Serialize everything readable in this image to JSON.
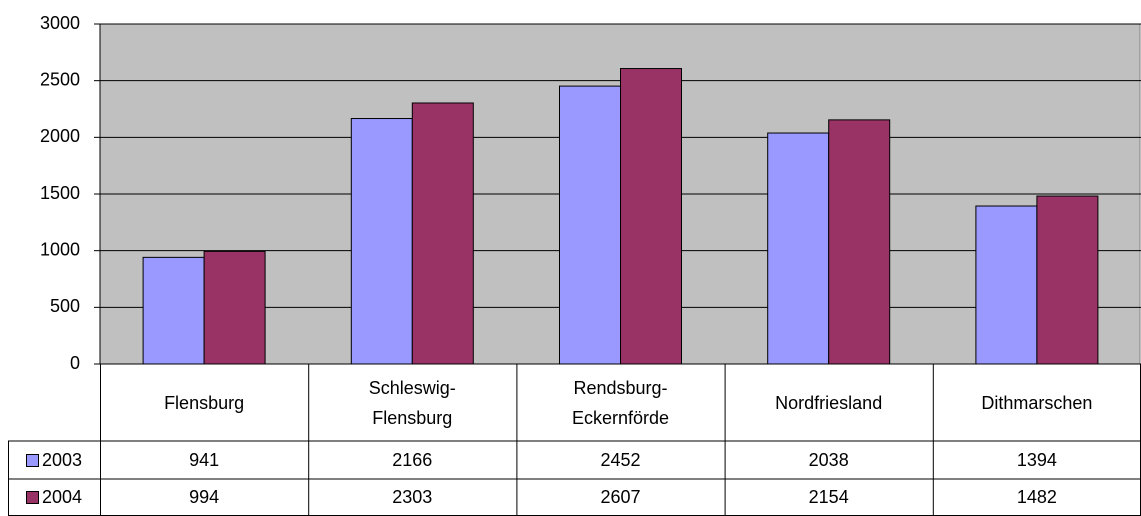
{
  "chart_data": {
    "type": "bar",
    "categories": [
      "Flensburg",
      "Schleswig-Flensburg",
      "Rendsburg-Eckernförde",
      "Nordfriesland",
      "Dithmarschen"
    ],
    "series": [
      {
        "name": "2003",
        "color": "#9999ff",
        "values": [
          941,
          2166,
          2452,
          2038,
          1394
        ]
      },
      {
        "name": "2004",
        "color": "#993366",
        "values": [
          994,
          2303,
          2607,
          2154,
          1482
        ]
      }
    ],
    "ylim": [
      0,
      3000
    ],
    "yticks": [
      0,
      500,
      1000,
      1500,
      2000,
      2500,
      3000
    ],
    "grid": true
  }
}
